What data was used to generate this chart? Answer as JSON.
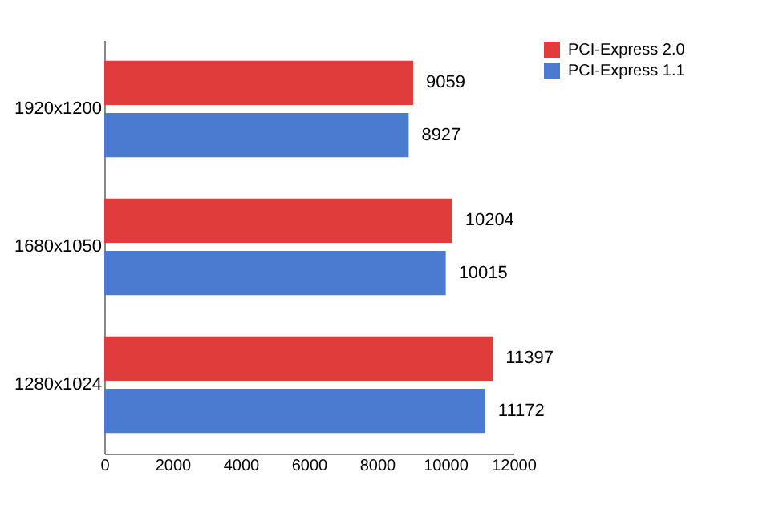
{
  "chart_data": {
    "type": "bar",
    "orientation": "horizontal",
    "categories": [
      "1920x1200",
      "1680x1050",
      "1280x1024"
    ],
    "series": [
      {
        "name": "PCI-Express 2.0",
        "color": "#e03c3c",
        "values": [
          9059,
          10204,
          11397
        ]
      },
      {
        "name": "PCI-Express 1.1",
        "color": "#4a7bd0",
        "values": [
          8927,
          10015,
          11172
        ]
      }
    ],
    "xlim": [
      0,
      12000
    ],
    "xticks": [
      0,
      2000,
      4000,
      6000,
      8000,
      10000,
      12000
    ],
    "grid": false,
    "legend": "right",
    "data_labels": true
  }
}
